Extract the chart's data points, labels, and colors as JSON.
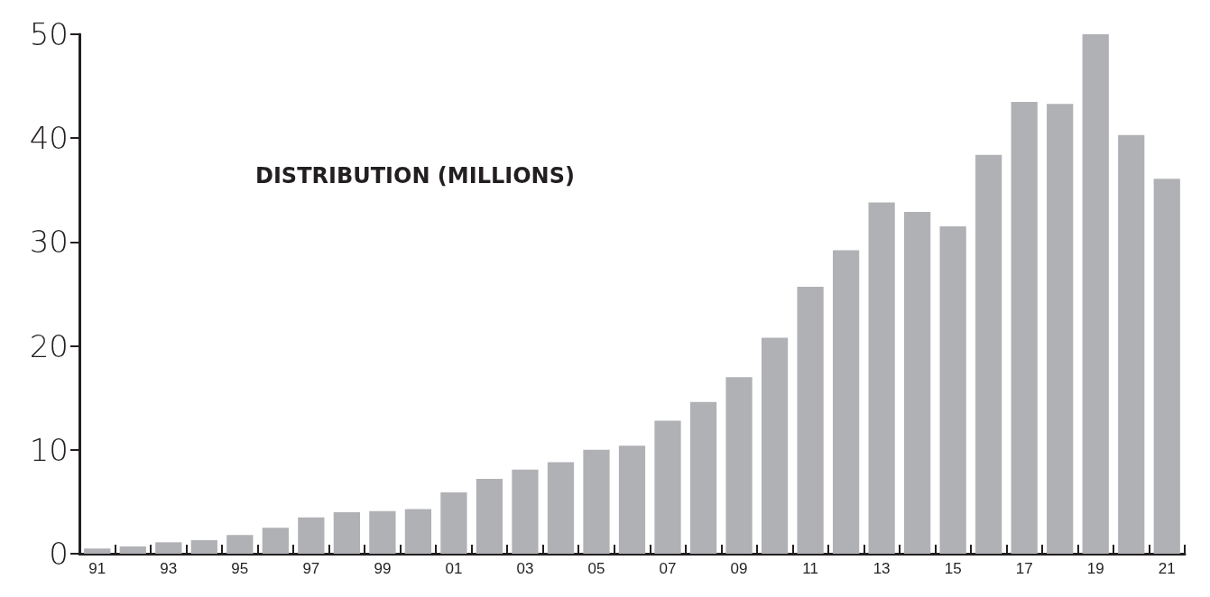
{
  "chart_data": {
    "type": "bar",
    "title": "DISTRIBUTION (MILLIONS)",
    "categories": [
      "91",
      null,
      "93",
      null,
      "95",
      null,
      "97",
      null,
      "99",
      null,
      "01",
      null,
      "03",
      null,
      "05",
      null,
      "07",
      null,
      "09",
      null,
      "11",
      null,
      "13",
      null,
      "15",
      null,
      "17",
      null,
      "19",
      null,
      "21"
    ],
    "values": [
      0.5,
      0.7,
      1.1,
      1.3,
      1.8,
      2.5,
      3.5,
      4.0,
      4.1,
      4.3,
      5.9,
      7.2,
      8.1,
      8.8,
      10.0,
      10.4,
      12.8,
      14.6,
      17.0,
      20.8,
      25.7,
      29.2,
      33.8,
      32.9,
      31.5,
      38.4,
      43.5,
      43.3,
      50.0,
      40.3,
      36.1
    ],
    "color": "#b0b1b5",
    "ylim": [
      0,
      50
    ],
    "yticks": [
      0,
      10,
      20,
      30,
      40,
      50
    ],
    "grid": false
  }
}
